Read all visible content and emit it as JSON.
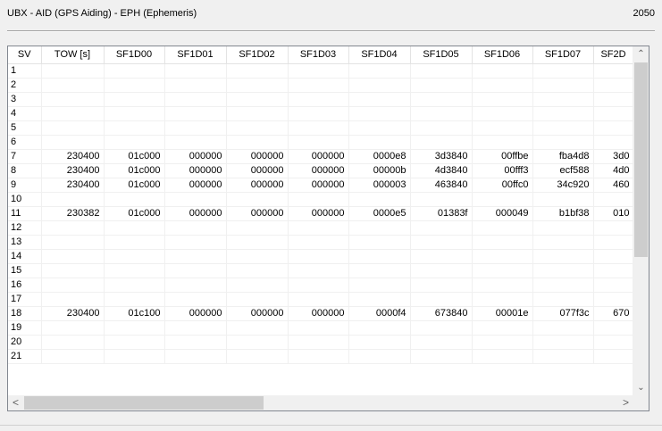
{
  "header": {
    "title": "UBX - AID (GPS Aiding) - EPH (Ephemeris)",
    "counter": "2050"
  },
  "table": {
    "columns": [
      "SV",
      "TOW [s]",
      "SF1D00",
      "SF1D01",
      "SF1D02",
      "SF1D03",
      "SF1D04",
      "SF1D05",
      "SF1D06",
      "SF1D07",
      "SF2D"
    ],
    "rows": [
      [
        "1",
        "",
        "",
        "",
        "",
        "",
        "",
        "",
        "",
        "",
        ""
      ],
      [
        "2",
        "",
        "",
        "",
        "",
        "",
        "",
        "",
        "",
        "",
        ""
      ],
      [
        "3",
        "",
        "",
        "",
        "",
        "",
        "",
        "",
        "",
        "",
        ""
      ],
      [
        "4",
        "",
        "",
        "",
        "",
        "",
        "",
        "",
        "",
        "",
        ""
      ],
      [
        "5",
        "",
        "",
        "",
        "",
        "",
        "",
        "",
        "",
        "",
        ""
      ],
      [
        "6",
        "",
        "",
        "",
        "",
        "",
        "",
        "",
        "",
        "",
        ""
      ],
      [
        "7",
        "230400",
        "01c000",
        "000000",
        "000000",
        "000000",
        "0000e8",
        "3d3840",
        "00ffbe",
        "fba4d8",
        "3d0"
      ],
      [
        "8",
        "230400",
        "01c000",
        "000000",
        "000000",
        "000000",
        "00000b",
        "4d3840",
        "00fff3",
        "ecf588",
        "4d0"
      ],
      [
        "9",
        "230400",
        "01c000",
        "000000",
        "000000",
        "000000",
        "000003",
        "463840",
        "00ffc0",
        "34c920",
        "460"
      ],
      [
        "10",
        "",
        "",
        "",
        "",
        "",
        "",
        "",
        "",
        "",
        ""
      ],
      [
        "11",
        "230382",
        "01c000",
        "000000",
        "000000",
        "000000",
        "0000e5",
        "01383f",
        "000049",
        "b1bf38",
        "010"
      ],
      [
        "12",
        "",
        "",
        "",
        "",
        "",
        "",
        "",
        "",
        "",
        ""
      ],
      [
        "13",
        "",
        "",
        "",
        "",
        "",
        "",
        "",
        "",
        "",
        ""
      ],
      [
        "14",
        "",
        "",
        "",
        "",
        "",
        "",
        "",
        "",
        "",
        ""
      ],
      [
        "15",
        "",
        "",
        "",
        "",
        "",
        "",
        "",
        "",
        "",
        ""
      ],
      [
        "16",
        "",
        "",
        "",
        "",
        "",
        "",
        "",
        "",
        "",
        ""
      ],
      [
        "17",
        "",
        "",
        "",
        "",
        "",
        "",
        "",
        "",
        "",
        ""
      ],
      [
        "18",
        "230400",
        "01c100",
        "000000",
        "000000",
        "000000",
        "0000f4",
        "673840",
        "00001e",
        "077f3c",
        "670"
      ],
      [
        "19",
        "",
        "",
        "",
        "",
        "",
        "",
        "",
        "",
        "",
        ""
      ],
      [
        "20",
        "",
        "",
        "",
        "",
        "",
        "",
        "",
        "",
        "",
        ""
      ],
      [
        "21",
        "",
        "",
        "",
        "",
        "",
        "",
        "",
        "",
        "",
        ""
      ]
    ]
  },
  "scroll": {
    "up_icon": "chevron-up-icon",
    "down_icon": "chevron-down-icon",
    "left_icon": "chevron-left-icon",
    "right_icon": "chevron-right-icon",
    "up_glyph": "⌃",
    "down_glyph": "⌄",
    "left_glyph": "<",
    "right_glyph": ">"
  }
}
